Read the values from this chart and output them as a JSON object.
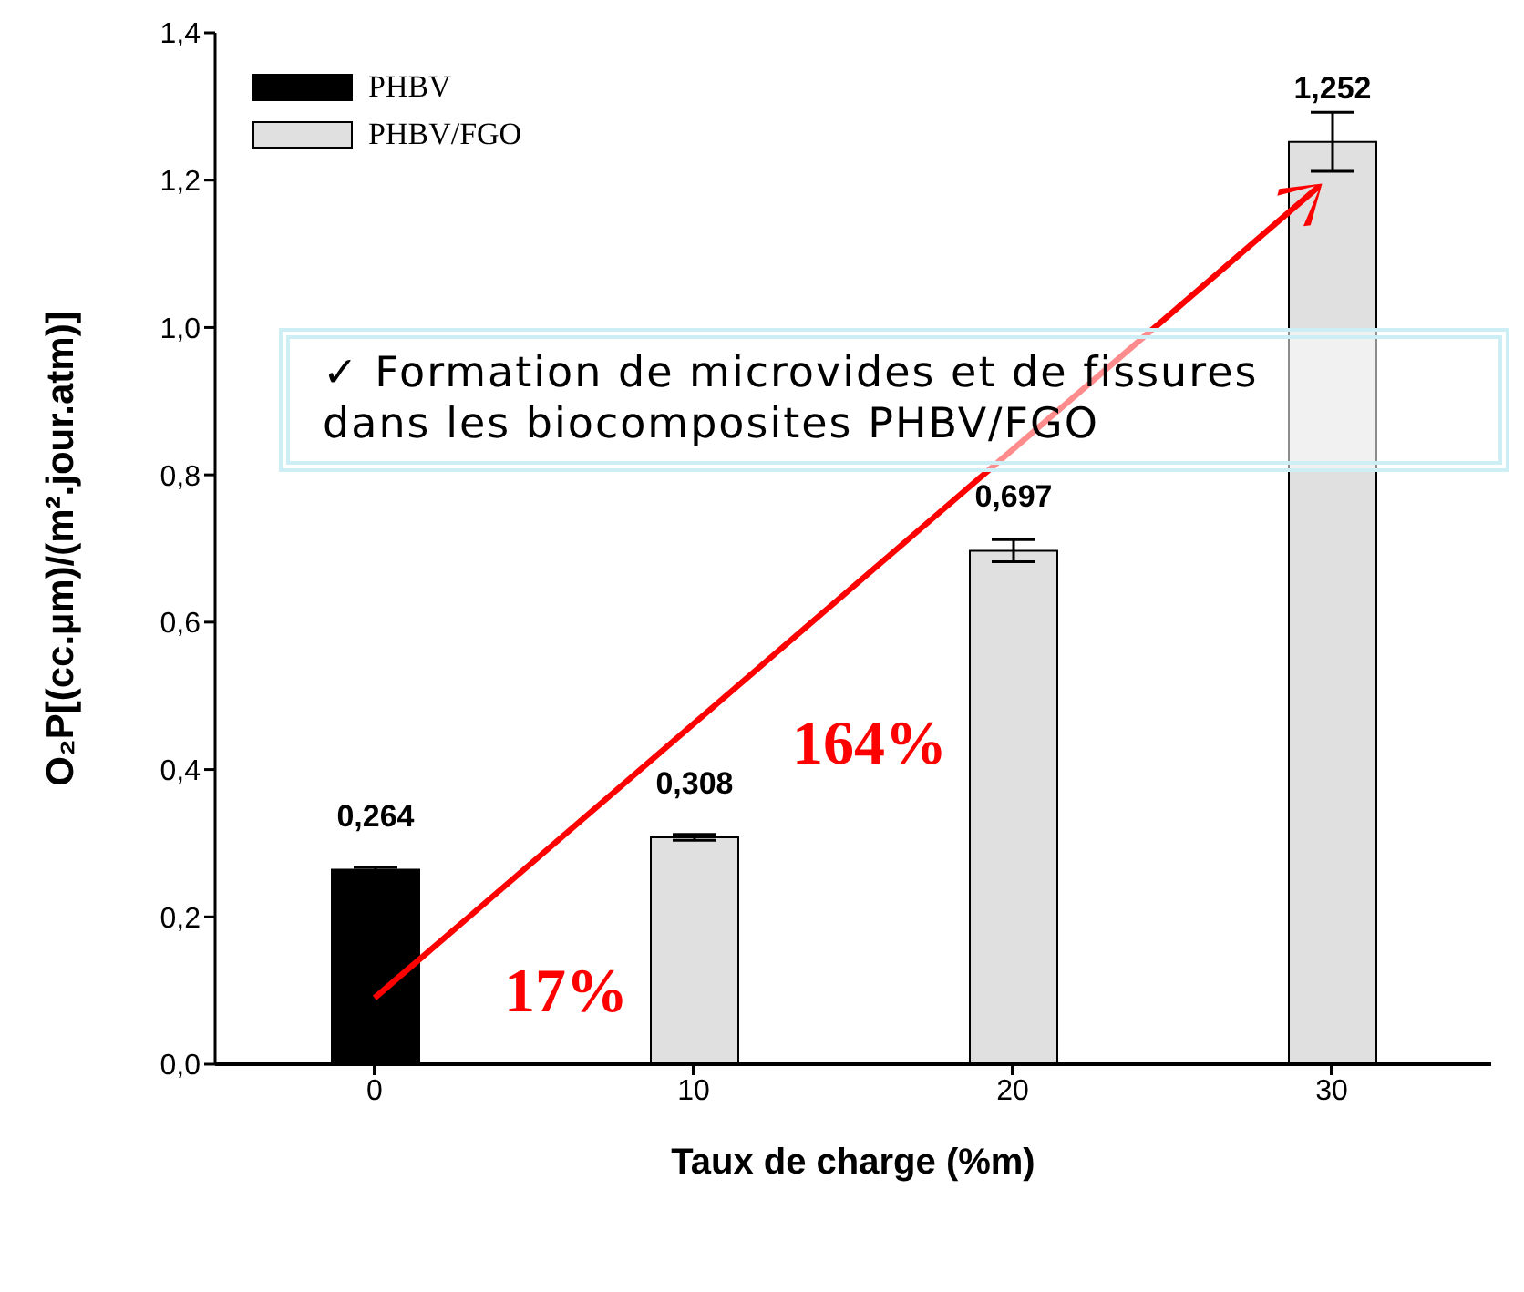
{
  "chart_data": {
    "type": "bar",
    "xlabel": "Taux de charge (%m)",
    "ylabel": "O₂P[(cc.µm)/(m².jour.atm)]",
    "categories": [
      "0",
      "10",
      "20",
      "30"
    ],
    "series": [
      {
        "name": "PHBV",
        "color": "#000000",
        "values": [
          0.264,
          null,
          null,
          null
        ],
        "errors": [
          0.003,
          null,
          null,
          null
        ],
        "value_labels": [
          "0,264",
          null,
          null,
          null
        ]
      },
      {
        "name": "PHBV/FGO",
        "color": "#e0e0e0",
        "values": [
          null,
          0.308,
          0.697,
          1.252
        ],
        "errors": [
          null,
          0.004,
          0.015,
          0.04
        ],
        "value_labels": [
          null,
          "0,308",
          "0,697",
          "1,252"
        ]
      }
    ],
    "ylim": [
      0,
      1.4
    ],
    "yticks": [
      {
        "value": 0,
        "label": "0,0"
      },
      {
        "value": 0.2,
        "label": "0,2"
      },
      {
        "value": 0.4,
        "label": "0,4"
      },
      {
        "value": 0.6,
        "label": "0,6"
      },
      {
        "value": 0.8,
        "label": "0,8"
      },
      {
        "value": 1.0,
        "label": "1,0"
      },
      {
        "value": 1.2,
        "label": "1,2"
      },
      {
        "value": 1.4,
        "label": "1,4"
      }
    ],
    "legend": "top left",
    "grid": false,
    "annotations": [
      "✓ Formation de microvides et de fissures\ndans les biocomposites PHBV/FGO",
      "17%",
      "164%"
    ]
  }
}
